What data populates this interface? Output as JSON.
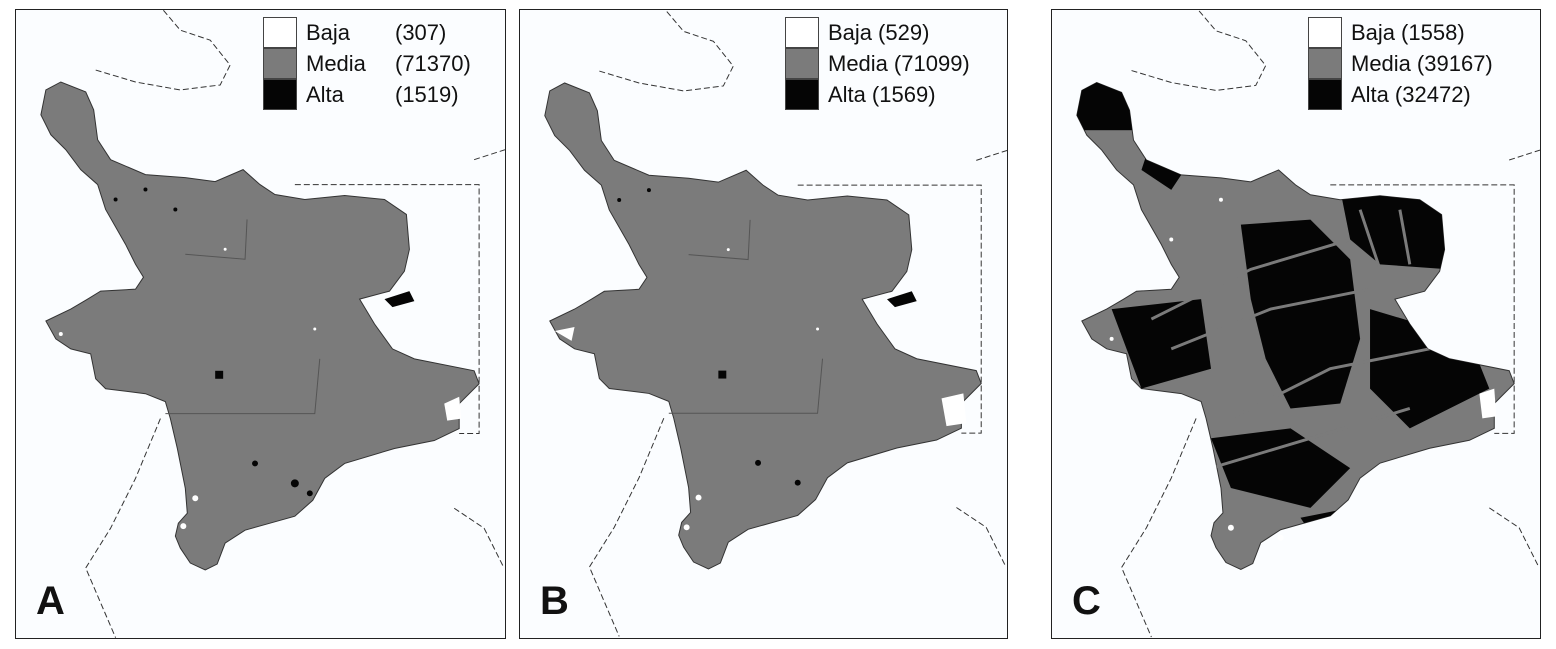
{
  "panels": [
    {
      "letter": "A",
      "legend": [
        {
          "label": "Baja",
          "count": "(307)"
        },
        {
          "label": "Media",
          "count": "(71370)"
        },
        {
          "label": "Alta",
          "count": "(1519)"
        }
      ]
    },
    {
      "letter": "B",
      "legend": [
        {
          "label": "Baja",
          "count": "(529)"
        },
        {
          "label": "Media",
          "count": "(71099)"
        },
        {
          "label": "Alta",
          "count": "(1569)"
        }
      ]
    },
    {
      "letter": "C",
      "legend": [
        {
          "label": "Baja",
          "count": "(1558)"
        },
        {
          "label": "Media",
          "count": "(39167)"
        },
        {
          "label": "Alta",
          "count": "(32472)"
        }
      ]
    }
  ],
  "colors": {
    "baja": "#ffffff",
    "media": "#7b7b7b",
    "alta": "#050505",
    "border": "#222222"
  }
}
